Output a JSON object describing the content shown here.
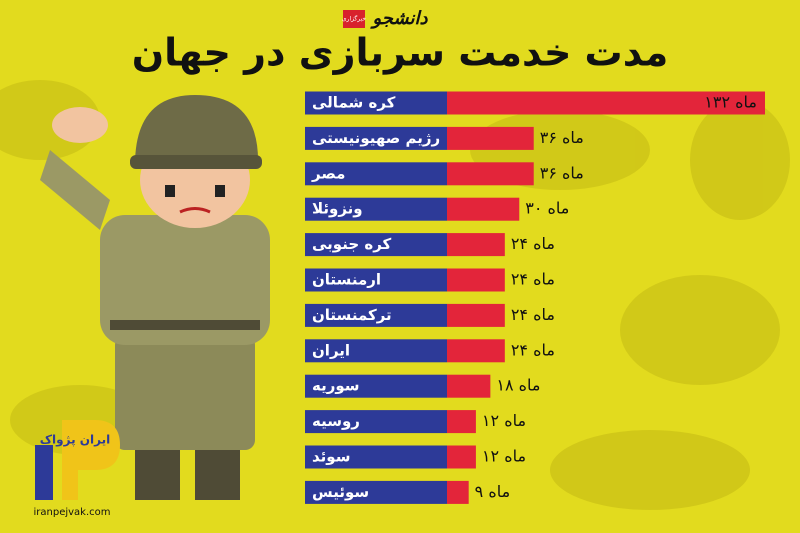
{
  "header": {
    "logo": "دانشجو",
    "logo_tag": "خبرگزاری"
  },
  "chart_data": {
    "type": "bar",
    "orientation": "horizontal",
    "title": "مدت خدمت سربازی در جهان",
    "categories": [
      "کره شمالی",
      "رژیم صهیونیستی",
      "مصر",
      "ونزوئلا",
      "کره جنوبی",
      "ارمنستان",
      "ترکمنستان",
      "ایران",
      "سوریه",
      "روسیه",
      "سوئد",
      "سوئیس"
    ],
    "values": [
      132,
      36,
      36,
      30,
      24,
      24,
      24,
      24,
      18,
      12,
      12,
      9
    ],
    "value_labels": [
      "۱۳۲ ماه",
      "۳۶ ماه",
      "۳۶ ماه",
      "۳۰ ماه",
      "۲۴ ماه",
      "۲۴ ماه",
      "۲۴ ماه",
      "۲۴ ماه",
      "۱۸ ماه",
      "۱۲ ماه",
      "۱۲ ماه",
      "۹ ماه"
    ],
    "color": "#e3253a",
    "label_color": "#2d3a98"
  },
  "footer": {
    "brand": "ایران پژواک",
    "site": "iranpejvak.com"
  }
}
